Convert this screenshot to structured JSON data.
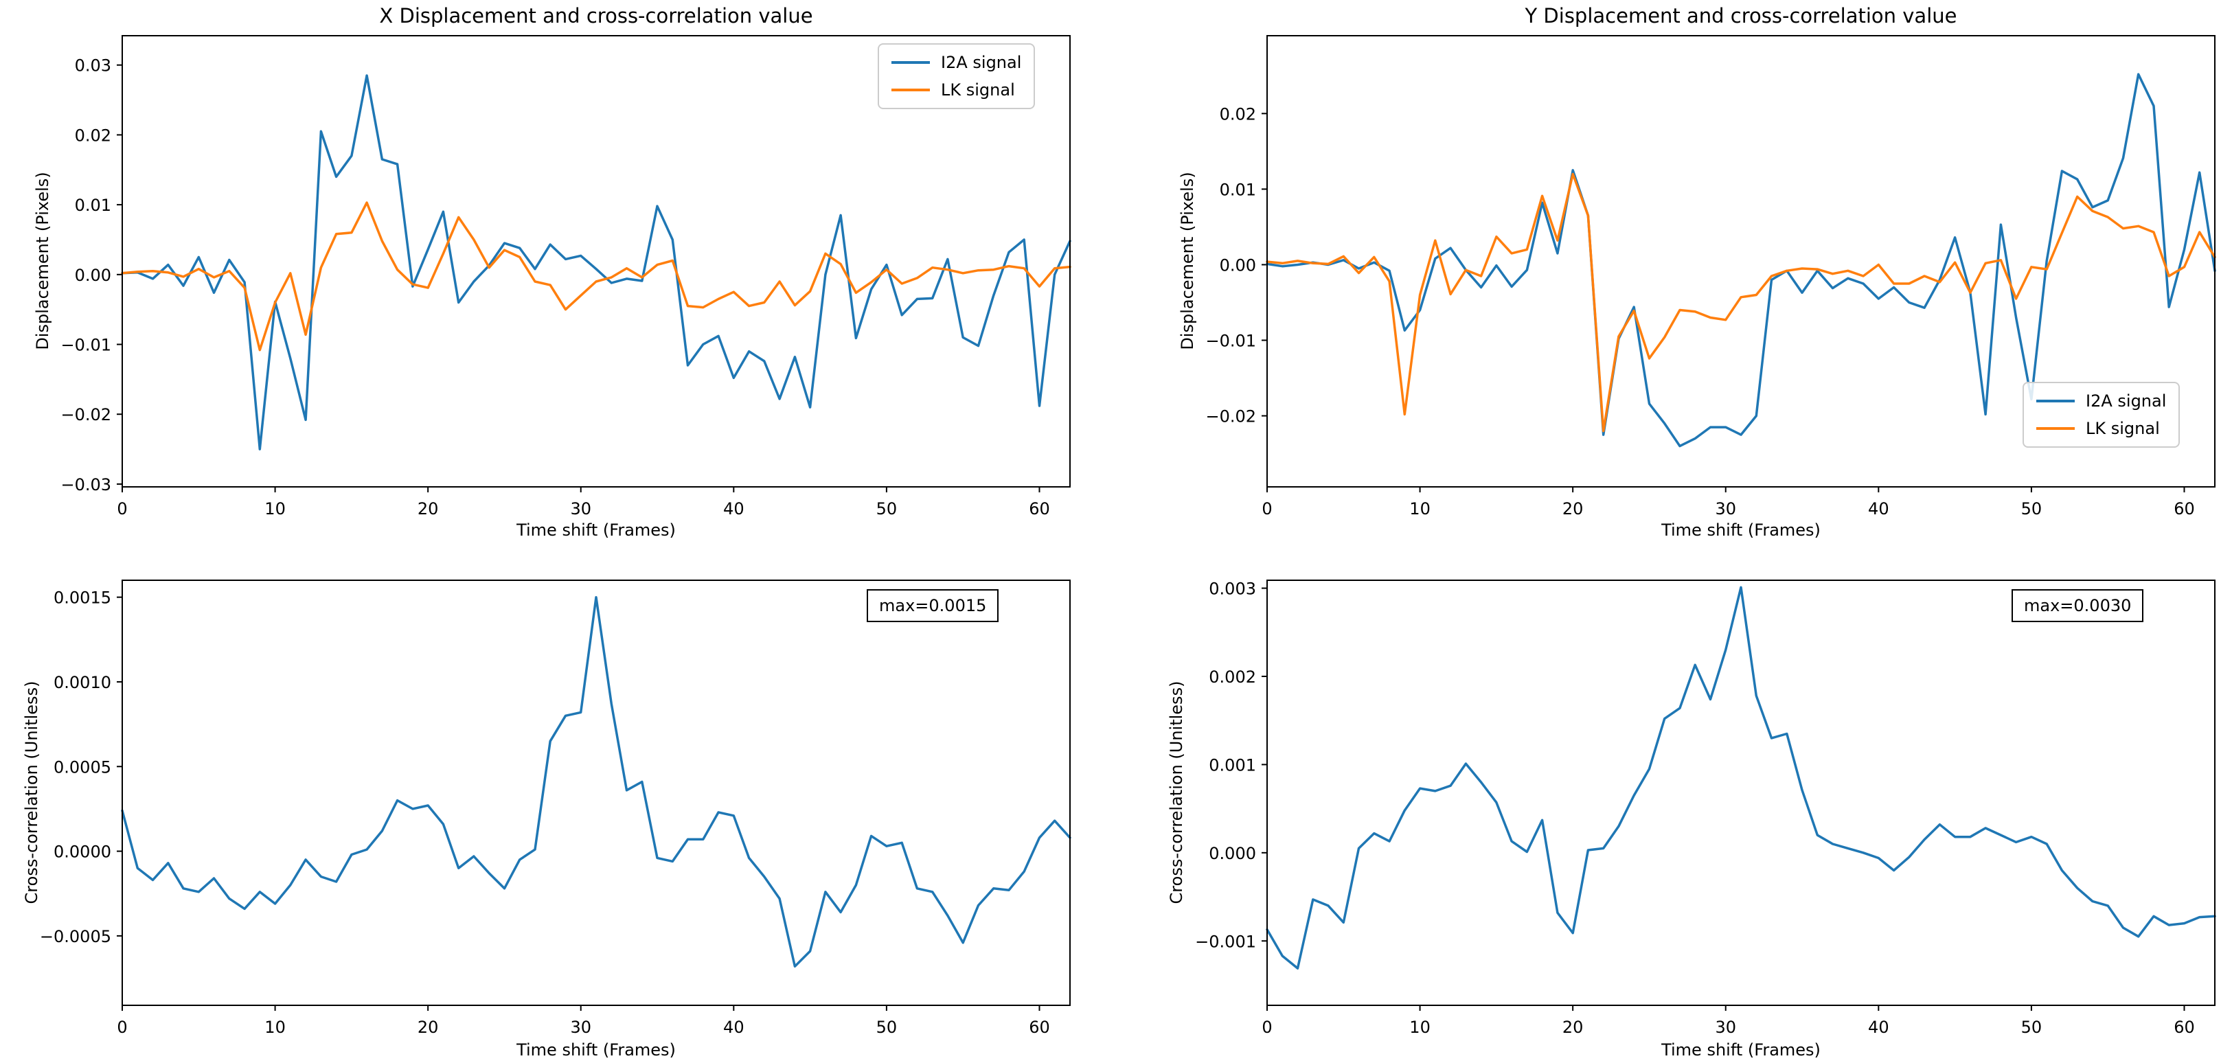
{
  "figure": {
    "background": "#ffffff"
  },
  "colors": {
    "i2a_line": "#1f77b4",
    "lk_line": "#ff7f0e",
    "axis": "#000000",
    "legend_border": "#cccccc"
  },
  "chart_data": {
    "type": "line",
    "layout": "2x2 grid, no gridlines, black box spines, outward ticks",
    "charts": [
      {
        "id": "x-displacement",
        "title": "X Displacement and cross-correlation value",
        "xlabel": "Time shift (Frames)",
        "ylabel": "Displacement (Pixels)",
        "xlim": [
          0,
          62
        ],
        "ylim": [
          -0.0304,
          0.0342
        ],
        "xticks": [
          {
            "v": 0,
            "label": "0"
          },
          {
            "v": 10,
            "label": "10"
          },
          {
            "v": 20,
            "label": "20"
          },
          {
            "v": 30,
            "label": "30"
          },
          {
            "v": 40,
            "label": "40"
          },
          {
            "v": 50,
            "label": "50"
          },
          {
            "v": 60,
            "label": "60"
          }
        ],
        "yticks": [
          {
            "v": 0.03,
            "label": "0.03"
          },
          {
            "v": 0.02,
            "label": "0.02"
          },
          {
            "v": 0.01,
            "label": "0.01"
          },
          {
            "v": 0.0,
            "label": "0.00"
          },
          {
            "v": -0.01,
            "label": "−0.01"
          },
          {
            "v": -0.02,
            "label": "−0.02"
          },
          {
            "v": -0.03,
            "label": "−0.03"
          }
        ],
        "legend_position": "upper-right",
        "series": [
          {
            "name": "I2A signal",
            "color": "#1f77b4",
            "x_start": 0,
            "x_step": 1,
            "y": [
              0.0002,
              0.0003,
              -0.0006,
              0.0014,
              -0.0016,
              0.0025,
              -0.0026,
              0.0021,
              -0.0011,
              -0.025,
              -0.0039,
              -0.012,
              -0.0208,
              0.0205,
              0.014,
              0.017,
              0.0285,
              0.0165,
              0.0158,
              -0.0017,
              0.0036,
              0.009,
              -0.004,
              -0.001,
              0.0013,
              0.0045,
              0.0038,
              0.0008,
              0.0043,
              0.0022,
              0.0027,
              0.0008,
              -0.0012,
              -0.0006,
              -0.0009,
              0.0098,
              0.005,
              -0.013,
              -0.01,
              -0.0088,
              -0.0148,
              -0.011,
              -0.0124,
              -0.0178,
              -0.0118,
              -0.019,
              0.0,
              0.0085,
              -0.0091,
              -0.0021,
              0.0014,
              -0.0058,
              -0.0035,
              -0.0034,
              0.0022,
              -0.009,
              -0.0102,
              -0.003,
              0.0032,
              0.005,
              -0.0188,
              0.0,
              0.0048
            ]
          },
          {
            "name": "LK signal",
            "color": "#ff7f0e",
            "x_start": 0,
            "x_step": 1,
            "y": [
              0.0002,
              0.0004,
              0.0005,
              0.0003,
              -0.0003,
              0.0008,
              -0.0004,
              0.0005,
              -0.0019,
              -0.0108,
              -0.004,
              0.0002,
              -0.0086,
              0.001,
              0.0058,
              0.006,
              0.0103,
              0.0048,
              0.0007,
              -0.0014,
              -0.0019,
              0.003,
              0.0082,
              0.005,
              0.001,
              0.0035,
              0.0025,
              -0.001,
              -0.0015,
              -0.005,
              -0.003,
              -0.001,
              -0.0004,
              0.0009,
              -0.0004,
              0.0014,
              0.002,
              -0.0045,
              -0.0047,
              -0.0035,
              -0.0025,
              -0.0045,
              -0.004,
              -0.001,
              -0.0044,
              -0.0024,
              0.003,
              0.0015,
              -0.0026,
              -0.0011,
              0.0007,
              -0.0013,
              -0.0005,
              0.001,
              0.0007,
              0.0002,
              0.0006,
              0.0007,
              0.0012,
              0.0009,
              -0.0017,
              0.0009,
              0.0011
            ]
          }
        ]
      },
      {
        "id": "y-displacement",
        "title": "Y Displacement and cross-correlation value",
        "xlabel": "Time shift (Frames)",
        "ylabel": "Displacement (Pixels)",
        "xlim": [
          0,
          62
        ],
        "ylim": [
          -0.0294,
          0.0303
        ],
        "xticks": [
          {
            "v": 0,
            "label": "0"
          },
          {
            "v": 10,
            "label": "10"
          },
          {
            "v": 20,
            "label": "20"
          },
          {
            "v": 30,
            "label": "30"
          },
          {
            "v": 40,
            "label": "40"
          },
          {
            "v": 50,
            "label": "50"
          },
          {
            "v": 60,
            "label": "60"
          }
        ],
        "yticks": [
          {
            "v": 0.02,
            "label": "0.02"
          },
          {
            "v": 0.01,
            "label": "0.01"
          },
          {
            "v": 0.0,
            "label": "0.00"
          },
          {
            "v": -0.01,
            "label": "−0.01"
          },
          {
            "v": -0.02,
            "label": "−0.02"
          }
        ],
        "legend_position": "lower-right",
        "series": [
          {
            "name": "I2A signal",
            "color": "#1f77b4",
            "x_start": 0,
            "x_step": 1,
            "y": [
              0.0001,
              -0.0002,
              0.0,
              0.0003,
              0.0,
              0.0006,
              -0.0005,
              0.0003,
              -0.0008,
              -0.0087,
              -0.006,
              0.0008,
              0.0022,
              -0.0007,
              -0.003,
              -0.0001,
              -0.0029,
              -0.0007,
              0.0082,
              0.0015,
              0.0125,
              0.0065,
              -0.0225,
              -0.0098,
              -0.0056,
              -0.0184,
              -0.021,
              -0.024,
              -0.023,
              -0.0215,
              -0.0215,
              -0.0225,
              -0.02,
              -0.002,
              -0.0008,
              -0.0037,
              -0.0008,
              -0.0031,
              -0.0018,
              -0.0025,
              -0.0045,
              -0.003,
              -0.005,
              -0.0057,
              -0.002,
              0.0036,
              -0.0037,
              -0.0198,
              0.0053,
              -0.007,
              -0.0178,
              0.0005,
              0.0124,
              0.0113,
              0.0076,
              0.0085,
              0.0141,
              0.0252,
              0.021,
              -0.0056,
              0.002,
              0.0122,
              -0.0008
            ]
          },
          {
            "name": "LK signal",
            "color": "#ff7f0e",
            "x_start": 0,
            "x_step": 1,
            "y": [
              0.0004,
              0.0002,
              0.0005,
              0.0002,
              0.0001,
              0.0011,
              -0.0011,
              0.001,
              -0.0022,
              -0.0198,
              -0.004,
              0.0032,
              -0.0039,
              -0.0007,
              -0.0015,
              0.0037,
              0.0015,
              0.002,
              0.0091,
              0.0032,
              0.012,
              0.0065,
              -0.022,
              -0.0095,
              -0.0061,
              -0.0124,
              -0.0096,
              -0.006,
              -0.0062,
              -0.007,
              -0.0073,
              -0.0043,
              -0.004,
              -0.0015,
              -0.0008,
              -0.0005,
              -0.0006,
              -0.0012,
              -0.0008,
              -0.0015,
              0.0,
              -0.0025,
              -0.0025,
              -0.0015,
              -0.0023,
              0.0003,
              -0.0037,
              0.0002,
              0.0006,
              -0.0045,
              -0.0003,
              -0.0006,
              0.0042,
              0.009,
              0.0071,
              0.0063,
              0.0048,
              0.0051,
              0.0043,
              -0.0015,
              -0.0003,
              0.0043,
              0.001
            ]
          }
        ]
      },
      {
        "id": "x-cross-correlation",
        "title": "",
        "xlabel": "Time shift (Frames)",
        "ylabel": "Cross-correlation (Unitless)",
        "annotation": "max=0.0015",
        "xlim": [
          0,
          62
        ],
        "ylim": [
          -0.00091,
          0.0016
        ],
        "xticks": [
          {
            "v": 0,
            "label": "0"
          },
          {
            "v": 10,
            "label": "10"
          },
          {
            "v": 20,
            "label": "20"
          },
          {
            "v": 30,
            "label": "30"
          },
          {
            "v": 40,
            "label": "40"
          },
          {
            "v": 50,
            "label": "50"
          },
          {
            "v": 60,
            "label": "60"
          }
        ],
        "yticks": [
          {
            "v": 0.0015,
            "label": "0.0015"
          },
          {
            "v": 0.001,
            "label": "0.0010"
          },
          {
            "v": 0.0005,
            "label": "0.0005"
          },
          {
            "v": 0.0,
            "label": "0.0000"
          },
          {
            "v": -0.0005,
            "label": "−0.0005"
          }
        ],
        "series": [
          {
            "name": "cross-correlation",
            "color": "#1f77b4",
            "x_start": 0,
            "x_step": 1,
            "y": [
              0.00024,
              -0.0001,
              -0.00017,
              -7e-05,
              -0.00022,
              -0.00024,
              -0.00016,
              -0.00028,
              -0.00034,
              -0.00024,
              -0.00031,
              -0.0002,
              -5e-05,
              -0.00015,
              -0.00018,
              -2e-05,
              1e-05,
              0.00012,
              0.0003,
              0.00025,
              0.00027,
              0.00016,
              -0.0001,
              -3e-05,
              -0.00013,
              -0.00022,
              -5e-05,
              1e-05,
              0.00065,
              0.0008,
              0.00082,
              0.0015,
              0.00087,
              0.00036,
              0.00041,
              -4e-05,
              -6e-05,
              7e-05,
              7e-05,
              0.00023,
              0.00021,
              -4e-05,
              -0.00015,
              -0.00028,
              -0.00068,
              -0.00059,
              -0.00024,
              -0.00036,
              -0.0002,
              9e-05,
              3e-05,
              5e-05,
              -0.00022,
              -0.00024,
              -0.00038,
              -0.00054,
              -0.00032,
              -0.00022,
              -0.00023,
              -0.00012,
              8e-05,
              0.00018,
              8e-05
            ]
          }
        ]
      },
      {
        "id": "y-cross-correlation",
        "title": "",
        "xlabel": "Time shift (Frames)",
        "ylabel": "Cross-correlation (Unitless)",
        "annotation": "max=0.0030",
        "xlim": [
          0,
          62
        ],
        "ylim": [
          -0.00173,
          0.00309
        ],
        "xticks": [
          {
            "v": 0,
            "label": "0"
          },
          {
            "v": 10,
            "label": "10"
          },
          {
            "v": 20,
            "label": "20"
          },
          {
            "v": 30,
            "label": "30"
          },
          {
            "v": 40,
            "label": "40"
          },
          {
            "v": 50,
            "label": "50"
          },
          {
            "v": 60,
            "label": "60"
          }
        ],
        "yticks": [
          {
            "v": 0.003,
            "label": "0.003"
          },
          {
            "v": 0.002,
            "label": "0.002"
          },
          {
            "v": 0.001,
            "label": "0.001"
          },
          {
            "v": 0.0,
            "label": "0.000"
          },
          {
            "v": -0.001,
            "label": "−0.001"
          }
        ],
        "series": [
          {
            "name": "cross-correlation",
            "color": "#1f77b4",
            "x_start": 0,
            "x_step": 1,
            "y": [
              -0.00087,
              -0.00117,
              -0.00131,
              -0.00053,
              -0.0006,
              -0.00079,
              5e-05,
              0.00022,
              0.00013,
              0.00048,
              0.00073,
              0.0007,
              0.00076,
              0.00101,
              0.0008,
              0.00057,
              0.00013,
              1e-05,
              0.00037,
              -0.00068,
              -0.00091,
              3e-05,
              5e-05,
              0.0003,
              0.00065,
              0.00095,
              0.00152,
              0.00164,
              0.00213,
              0.00174,
              0.0023,
              0.00301,
              0.00178,
              0.0013,
              0.00135,
              0.00071,
              0.0002,
              0.0001,
              5e-05,
              0.0,
              -6e-05,
              -0.0002,
              -5e-05,
              0.00015,
              0.00032,
              0.00018,
              0.00018,
              0.00028,
              0.0002,
              0.00012,
              0.00018,
              0.0001,
              -0.0002,
              -0.0004,
              -0.00055,
              -0.0006,
              -0.00085,
              -0.00095,
              -0.00072,
              -0.00082,
              -0.0008,
              -0.00073,
              -0.00072
            ]
          }
        ]
      }
    ]
  }
}
